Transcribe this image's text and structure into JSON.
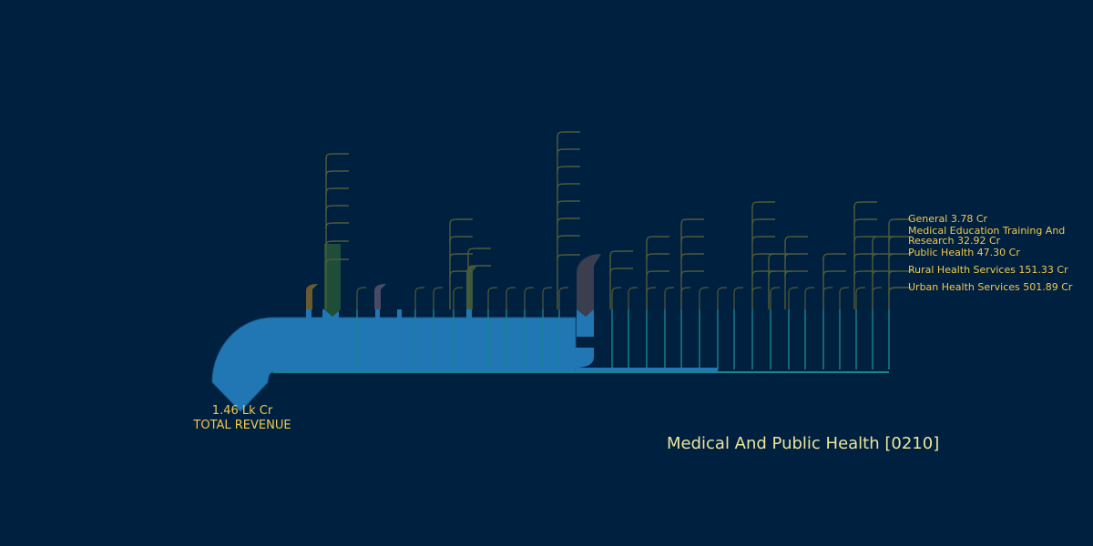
{
  "chart_data": {
    "type": "sankey",
    "title": "Medical And Public Health [0210]",
    "source": {
      "value_text": "1.46 Lk Cr",
      "label": "TOTAL REVENUE"
    },
    "categories": [
      "General 3.78 Cr",
      "Medical Education Training And Research 32.92 Cr",
      "Public Health 47.30 Cr",
      "Rural Health Services 151.33 Cr",
      "Urban Health Services 501.89 Cr"
    ],
    "category_values_cr": [
      3.78,
      32.92,
      47.3,
      151.33,
      501.89
    ],
    "colors": {
      "background": "#002040",
      "main_flow": "#2177b4",
      "label": "#f2c94c",
      "title": "#ede59a",
      "thin_branch": "#188490",
      "tree_line": "#515a38"
    }
  }
}
